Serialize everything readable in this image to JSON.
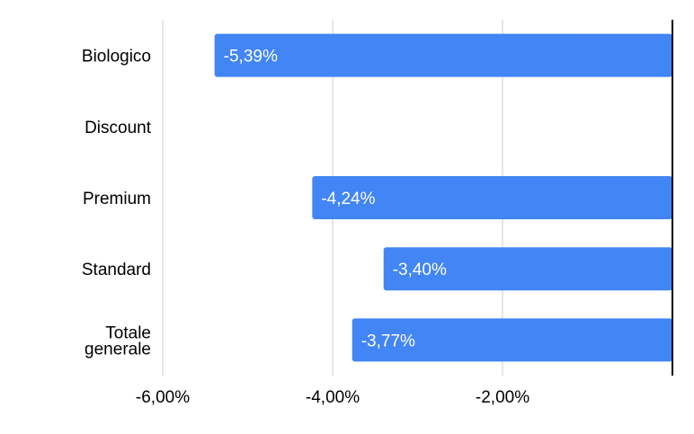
{
  "chart_data": {
    "type": "bar",
    "orientation": "horizontal",
    "categories": [
      "Biologico",
      "Discount",
      "Premium",
      "Standard",
      "Totale generale"
    ],
    "category_label_lines": [
      [
        "Biologico"
      ],
      [
        "Discount"
      ],
      [
        "Premium"
      ],
      [
        "Standard"
      ],
      [
        "Totale",
        "generale"
      ]
    ],
    "values": [
      -5.39,
      null,
      -4.24,
      -3.4,
      -3.77
    ],
    "data_labels": [
      "-5,39%",
      "",
      "-4,24%",
      "-3,40%",
      "-3,77%"
    ],
    "x_ticks": [
      -6,
      -4,
      -2
    ],
    "x_tick_labels": [
      "-6,00%",
      "-4,00%",
      "-2,00%"
    ],
    "xlim": [
      -6.0,
      0.0
    ],
    "grid": true,
    "legend": "none",
    "colors": {
      "bar": "#4285f4",
      "grid": "#cccccc",
      "zero_line": "#000000",
      "label_text": "#000000",
      "data_label_text": "#ffffff"
    }
  }
}
